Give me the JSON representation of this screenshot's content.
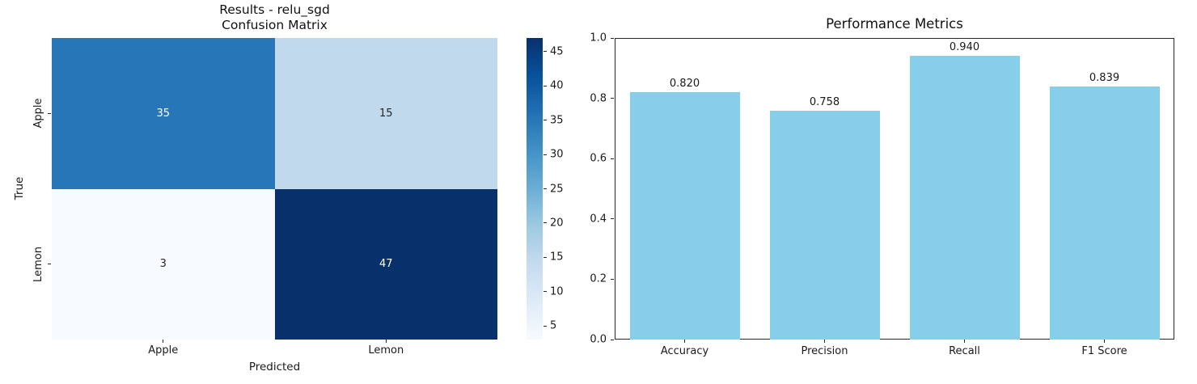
{
  "figure": {
    "background": "#ffffff",
    "text_color": "#1a1a1a"
  },
  "chart_data": [
    {
      "type": "heatmap",
      "title_lines": [
        "Results - relu_sgd",
        "Confusion Matrix"
      ],
      "xlabel": "Predicted",
      "ylabel": "True",
      "x_categories": [
        "Apple",
        "Lemon"
      ],
      "y_categories": [
        "Apple",
        "Lemon"
      ],
      "values": [
        [
          35,
          15
        ],
        [
          3,
          47
        ]
      ],
      "cell_colors": [
        [
          "#2777b8",
          "#c0d9ec"
        ],
        [
          "#f7fbff",
          "#08306b"
        ]
      ],
      "cell_text_colors": [
        [
          "#ffffff",
          "#262626"
        ],
        [
          "#262626",
          "#ffffff"
        ]
      ],
      "colormap": "Blues",
      "vmin": 3,
      "vmax": 47,
      "colorbar_ticks": [
        5,
        10,
        15,
        20,
        25,
        30,
        35,
        40,
        45
      ],
      "colorbar_gradient": [
        "#f7fbff",
        "#deebf7",
        "#c6dbef",
        "#9ecae1",
        "#6baed6",
        "#4292c6",
        "#2171b5",
        "#08519c",
        "#08306b"
      ]
    },
    {
      "type": "bar",
      "title": "Performance Metrics",
      "categories": [
        "Accuracy",
        "Precision",
        "Recall",
        "F1 Score"
      ],
      "values": [
        0.82,
        0.758,
        0.94,
        0.839
      ],
      "value_labels": [
        "0.820",
        "0.758",
        "0.940",
        "0.839"
      ],
      "bar_color": "#87ceeb",
      "ylim": [
        0.0,
        1.0
      ],
      "ytick_labels": [
        "0.0",
        "0.2",
        "0.4",
        "0.6",
        "0.8",
        "1.0"
      ],
      "yticks": [
        0.0,
        0.2,
        0.4,
        0.6,
        0.8,
        1.0
      ],
      "grid": false
    }
  ]
}
